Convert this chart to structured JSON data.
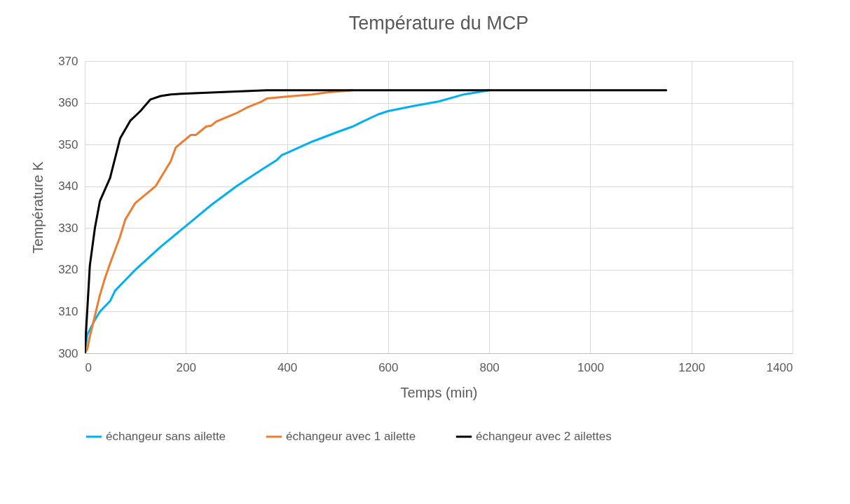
{
  "chart_data": {
    "type": "line",
    "title": "Température du MCP",
    "xlabel": "Temps (min)",
    "ylabel": "Température K",
    "xlim": [
      0,
      1400
    ],
    "xticks": [
      0,
      200,
      400,
      600,
      800,
      1000,
      1200,
      1400
    ],
    "ylim": [
      300,
      370
    ],
    "yticks": [
      300,
      310,
      320,
      330,
      340,
      350,
      360,
      370
    ],
    "grid": true,
    "legend": "bottom",
    "marker": "none",
    "line_style": "solid",
    "series": [
      {
        "name": "échangeur sans ailette",
        "color": "#00b0f0",
        "x": [
          0,
          5,
          20,
          30,
          50,
          60,
          80,
          100,
          150,
          200,
          250,
          300,
          350,
          380,
          390,
          400,
          450,
          500,
          530,
          550,
          580,
          600,
          650,
          700,
          750,
          800
        ],
        "values": [
          300,
          304.5,
          308,
          310,
          312.5,
          315,
          317.5,
          320,
          325.5,
          330.5,
          335.5,
          340,
          344,
          346.3,
          347.5,
          348,
          350.7,
          353,
          354.3,
          355.5,
          357.2,
          358,
          359.2,
          360.3,
          362,
          363
        ]
      },
      {
        "name": "échangeur avec 1 ailette",
        "color": "#ed7d31",
        "x": [
          0,
          5,
          10,
          20,
          30,
          40,
          50,
          70,
          80,
          100,
          140,
          170,
          180,
          210,
          220,
          240,
          250,
          260,
          300,
          320,
          350,
          360,
          400,
          450,
          480,
          530
        ],
        "values": [
          300,
          301,
          304,
          309,
          314,
          318,
          321.5,
          328,
          332,
          336,
          340,
          346,
          349.3,
          352.3,
          352.3,
          354.3,
          354.5,
          355.5,
          357.5,
          358.8,
          360.3,
          361,
          361.5,
          362,
          362.5,
          363
        ]
      },
      {
        "name": "échangeur avec 2 ailettes",
        "color": "#000000",
        "x": [
          0,
          10,
          20,
          30,
          50,
          70,
          90,
          110,
          130,
          150,
          170,
          200,
          300,
          360,
          1150
        ],
        "values": [
          300,
          321,
          330,
          336.5,
          342,
          351.5,
          355.7,
          358,
          360.8,
          361.6,
          362,
          362.2,
          362.7,
          363,
          363
        ]
      }
    ]
  }
}
